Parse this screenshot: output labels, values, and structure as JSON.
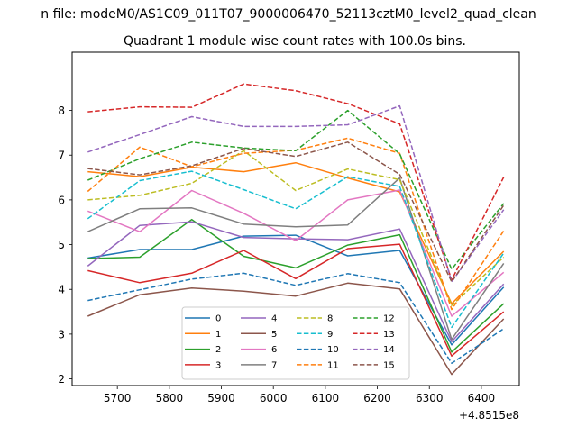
{
  "chart_data": {
    "type": "line",
    "suptitle": "n file: modeM0/AS1C09_011T07_9000006470_52113cztM0_level2_quad_clean",
    "title": "Quadrant 1 module wise count rates with 100.0s bins.",
    "xlabel": "",
    "ylabel": "",
    "x_offset_label": "+4.8515e8",
    "x": [
      5643,
      5743,
      5843,
      5943,
      6043,
      6143,
      6243,
      6343,
      6443
    ],
    "xlim": [
      5613,
      6473
    ],
    "ylim": [
      1.85,
      9.3
    ],
    "xticks": [
      5700,
      5800,
      5900,
      6000,
      6100,
      6200,
      6300,
      6400
    ],
    "xtick_labels": [
      "5700",
      "5800",
      "5900",
      "6000",
      "6100",
      "6200",
      "6300",
      "6400"
    ],
    "yticks": [
      2,
      3,
      4,
      5,
      6,
      7,
      8
    ],
    "ytick_labels": [
      "2",
      "3",
      "4",
      "5",
      "6",
      "7",
      "8"
    ],
    "grid": false,
    "legend_position": "lower-center",
    "legend_columns": 4,
    "series": [
      {
        "name": "0",
        "color": "#1f77b4",
        "dashed": false,
        "values": [
          4.7,
          4.89,
          4.89,
          5.19,
          5.21,
          4.75,
          4.87,
          2.76,
          4.05
        ]
      },
      {
        "name": "1",
        "color": "#ff7f0e",
        "dashed": false,
        "values": [
          6.63,
          6.52,
          6.73,
          6.63,
          6.83,
          6.49,
          6.18,
          3.68,
          4.85
        ]
      },
      {
        "name": "2",
        "color": "#2ca02c",
        "dashed": false,
        "values": [
          4.69,
          4.72,
          5.56,
          4.74,
          4.48,
          4.99,
          5.22,
          2.6,
          3.68
        ]
      },
      {
        "name": "3",
        "color": "#d62728",
        "dashed": false,
        "values": [
          4.42,
          4.15,
          4.36,
          4.87,
          4.24,
          4.91,
          5.01,
          2.51,
          3.5
        ]
      },
      {
        "name": "4",
        "color": "#9467bd",
        "dashed": false,
        "values": [
          4.52,
          5.43,
          5.51,
          5.16,
          5.13,
          5.11,
          5.35,
          2.83,
          4.12
        ]
      },
      {
        "name": "5",
        "color": "#8c564b",
        "dashed": false,
        "values": [
          3.4,
          3.88,
          4.03,
          3.96,
          3.85,
          4.14,
          4.01,
          2.1,
          3.34
        ]
      },
      {
        "name": "6",
        "color": "#e377c2",
        "dashed": false,
        "values": [
          5.75,
          5.29,
          6.21,
          5.7,
          5.09,
          6.0,
          6.22,
          3.4,
          4.38
        ]
      },
      {
        "name": "7",
        "color": "#7f7f7f",
        "dashed": false,
        "values": [
          5.29,
          5.8,
          5.82,
          5.46,
          5.4,
          5.44,
          6.49,
          2.88,
          4.58
        ]
      },
      {
        "name": "8",
        "color": "#bcbd22",
        "dashed": true,
        "values": [
          6.0,
          6.1,
          6.37,
          7.1,
          6.21,
          6.69,
          6.45,
          3.64,
          4.72
        ]
      },
      {
        "name": "9",
        "color": "#17becf",
        "dashed": true,
        "values": [
          5.58,
          6.43,
          6.64,
          6.23,
          5.8,
          6.52,
          6.3,
          3.15,
          4.81
        ]
      },
      {
        "name": "10",
        "color": "#1f77b4",
        "dashed": true,
        "values": [
          3.75,
          3.99,
          4.23,
          4.36,
          4.09,
          4.35,
          4.15,
          2.35,
          3.12
        ]
      },
      {
        "name": "11",
        "color": "#ff7f0e",
        "dashed": true,
        "values": [
          6.19,
          7.18,
          6.74,
          7.04,
          7.11,
          7.38,
          7.04,
          3.55,
          5.31
        ]
      },
      {
        "name": "12",
        "color": "#2ca02c",
        "dashed": true,
        "values": [
          6.44,
          6.92,
          7.29,
          7.16,
          7.1,
          8.0,
          7.03,
          4.45,
          5.92
        ]
      },
      {
        "name": "13",
        "color": "#d62728",
        "dashed": true,
        "values": [
          7.97,
          8.08,
          8.07,
          8.59,
          8.44,
          8.15,
          7.7,
          4.21,
          6.51
        ]
      },
      {
        "name": "14",
        "color": "#9467bd",
        "dashed": true,
        "values": [
          7.07,
          7.46,
          7.86,
          7.64,
          7.64,
          7.68,
          8.1,
          4.17,
          5.78
        ]
      },
      {
        "name": "15",
        "color": "#8c564b",
        "dashed": true,
        "values": [
          6.7,
          6.56,
          6.76,
          7.15,
          6.97,
          7.29,
          6.57,
          4.17,
          5.88
        ]
      }
    ]
  }
}
